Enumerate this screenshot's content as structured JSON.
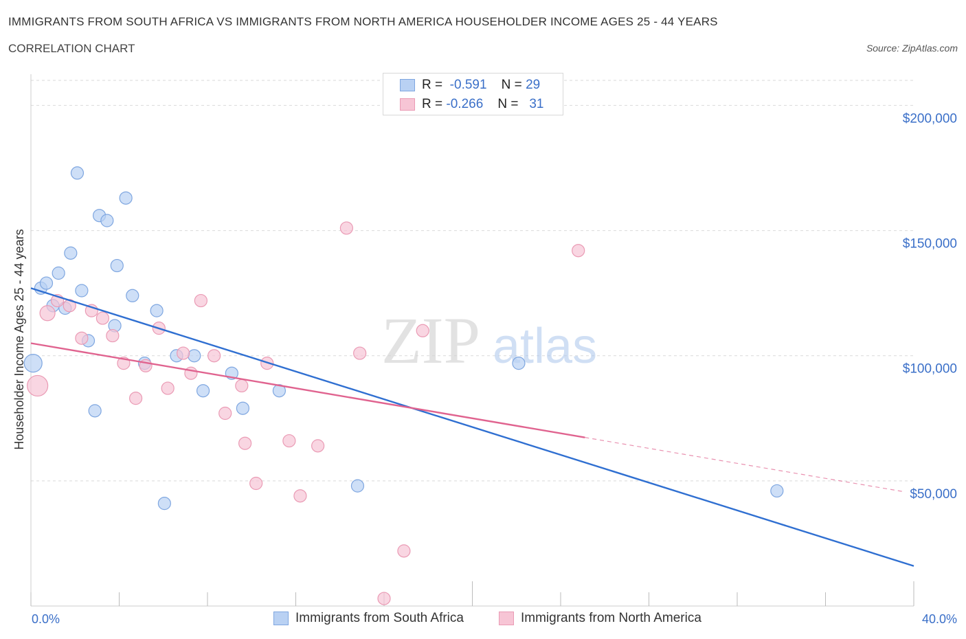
{
  "title": "IMMIGRANTS FROM SOUTH AFRICA VS IMMIGRANTS FROM NORTH AMERICA HOUSEHOLDER INCOME AGES 25 - 44 YEARS",
  "subtitle": "CORRELATION CHART",
  "source": "Source: ZipAtlas.com",
  "watermark": "ZIPatlas",
  "legend": {
    "r_label": "R =",
    "n_label": "N =",
    "rows": [
      {
        "r": "-0.591",
        "n": "29"
      },
      {
        "r": "-0.266",
        "n": "31"
      }
    ]
  },
  "colors": {
    "series1_fill": "#b9d1f3",
    "series1_stroke": "#7ea6e0",
    "series1_line": "#2f6fd1",
    "series2_fill": "#f7c5d5",
    "series2_stroke": "#ea9ab4",
    "series2_line": "#e0638f",
    "tick_text": "#3a6fc8",
    "grid": "#d9d9d9"
  },
  "chart_data": {
    "type": "scatter",
    "title": "IMMIGRANTS FROM SOUTH AFRICA VS IMMIGRANTS FROM NORTH AMERICA HOUSEHOLDER INCOME AGES 25 - 44 YEARS",
    "xlabel": "",
    "ylabel": "Householder Income Ages 25 - 44 years",
    "xlim": [
      0,
      40
    ],
    "ylim": [
      0,
      210000
    ],
    "x_tick_labels": [
      "0.0%",
      "40.0%"
    ],
    "y_ticks": [
      50000,
      100000,
      150000,
      200000
    ],
    "y_tick_labels": [
      "$50,000",
      "$100,000",
      "$150,000",
      "$200,000"
    ],
    "grid": true,
    "legend_position": "top-center",
    "series": [
      {
        "name": "Immigrants from South Africa",
        "points": [
          {
            "x": 0.1,
            "y": 97000,
            "s": 13
          },
          {
            "x": 0.45,
            "y": 127000,
            "s": 9
          },
          {
            "x": 0.7,
            "y": 129000,
            "s": 9
          },
          {
            "x": 1.0,
            "y": 120000,
            "s": 9
          },
          {
            "x": 1.25,
            "y": 133000,
            "s": 9
          },
          {
            "x": 1.55,
            "y": 119000,
            "s": 9
          },
          {
            "x": 1.8,
            "y": 141000,
            "s": 9
          },
          {
            "x": 2.1,
            "y": 173000,
            "s": 9
          },
          {
            "x": 2.3,
            "y": 126000,
            "s": 9
          },
          {
            "x": 2.6,
            "y": 106000,
            "s": 9
          },
          {
            "x": 2.9,
            "y": 78000,
            "s": 9
          },
          {
            "x": 3.1,
            "y": 156000,
            "s": 9
          },
          {
            "x": 3.45,
            "y": 154000,
            "s": 9
          },
          {
            "x": 3.8,
            "y": 112000,
            "s": 9
          },
          {
            "x": 3.9,
            "y": 136000,
            "s": 9
          },
          {
            "x": 4.3,
            "y": 163000,
            "s": 9
          },
          {
            "x": 4.6,
            "y": 124000,
            "s": 9
          },
          {
            "x": 5.15,
            "y": 97000,
            "s": 9
          },
          {
            "x": 5.7,
            "y": 118000,
            "s": 9
          },
          {
            "x": 6.05,
            "y": 41000,
            "s": 9
          },
          {
            "x": 6.6,
            "y": 100000,
            "s": 9
          },
          {
            "x": 7.4,
            "y": 100000,
            "s": 9
          },
          {
            "x": 7.8,
            "y": 86000,
            "s": 9
          },
          {
            "x": 9.1,
            "y": 93000,
            "s": 9
          },
          {
            "x": 9.6,
            "y": 79000,
            "s": 9
          },
          {
            "x": 11.25,
            "y": 86000,
            "s": 9
          },
          {
            "x": 14.8,
            "y": 48000,
            "s": 9
          },
          {
            "x": 22.1,
            "y": 97000,
            "s": 9
          },
          {
            "x": 33.8,
            "y": 46000,
            "s": 9
          }
        ],
        "trend": {
          "x0": 0.0,
          "y0": 127000,
          "x1": 40.0,
          "y1": 16000,
          "dash_from": null
        }
      },
      {
        "name": "Immigrants from North America",
        "points": [
          {
            "x": 0.3,
            "y": 88000,
            "s": 15
          },
          {
            "x": 0.75,
            "y": 117000,
            "s": 11
          },
          {
            "x": 1.2,
            "y": 122000,
            "s": 9
          },
          {
            "x": 1.75,
            "y": 120000,
            "s": 9
          },
          {
            "x": 2.3,
            "y": 107000,
            "s": 9
          },
          {
            "x": 2.75,
            "y": 118000,
            "s": 9
          },
          {
            "x": 3.25,
            "y": 115000,
            "s": 9
          },
          {
            "x": 3.7,
            "y": 108000,
            "s": 9
          },
          {
            "x": 4.2,
            "y": 97000,
            "s": 9
          },
          {
            "x": 4.75,
            "y": 83000,
            "s": 9
          },
          {
            "x": 5.2,
            "y": 96000,
            "s": 9
          },
          {
            "x": 5.8,
            "y": 111000,
            "s": 9
          },
          {
            "x": 6.2,
            "y": 87000,
            "s": 9
          },
          {
            "x": 6.9,
            "y": 101000,
            "s": 9
          },
          {
            "x": 7.25,
            "y": 93000,
            "s": 9
          },
          {
            "x": 7.7,
            "y": 122000,
            "s": 9
          },
          {
            "x": 8.3,
            "y": 100000,
            "s": 9
          },
          {
            "x": 8.8,
            "y": 77000,
            "s": 9
          },
          {
            "x": 9.55,
            "y": 88000,
            "s": 9
          },
          {
            "x": 9.7,
            "y": 65000,
            "s": 9
          },
          {
            "x": 10.2,
            "y": 49000,
            "s": 9
          },
          {
            "x": 10.7,
            "y": 97000,
            "s": 9
          },
          {
            "x": 11.7,
            "y": 66000,
            "s": 9
          },
          {
            "x": 12.2,
            "y": 44000,
            "s": 9
          },
          {
            "x": 13.0,
            "y": 64000,
            "s": 9
          },
          {
            "x": 14.3,
            "y": 151000,
            "s": 9
          },
          {
            "x": 14.9,
            "y": 101000,
            "s": 9
          },
          {
            "x": 16.9,
            "y": 22000,
            "s": 9
          },
          {
            "x": 17.75,
            "y": 110000,
            "s": 9
          },
          {
            "x": 16.0,
            "y": 3000,
            "s": 9
          },
          {
            "x": 24.8,
            "y": 142000,
            "s": 9
          }
        ],
        "trend": {
          "x0": 0.0,
          "y0": 105000,
          "x1": 40.0,
          "y1": 45000,
          "dash_from": 25.1
        }
      }
    ]
  }
}
